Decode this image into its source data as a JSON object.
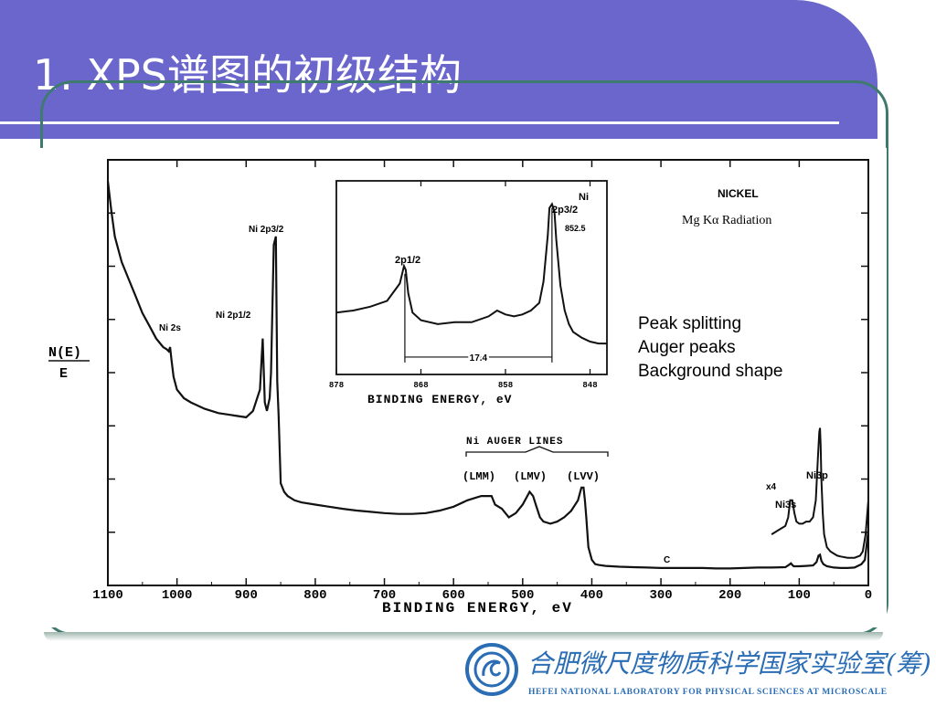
{
  "slide": {
    "title": "1. XPS谱图的初级结构",
    "logo_cn": "合肥微尺度物质科学国家实验室(筹)",
    "logo_en": "HEFEI NATIONAL LABORATORY FOR PHYSICAL SCIENCES AT MICROSCALE",
    "colors": {
      "title_bg": "#6a66cc",
      "frame": "#3f7a6f",
      "logo_blue": "#2a6db5"
    }
  },
  "chart_data": [
    {
      "type": "line",
      "title": "",
      "xlabel": "BINDING ENERGY, eV",
      "ylabel": "N(E) / E",
      "xlim": [
        1100,
        0
      ],
      "x_ticks": [
        "1100",
        "1000",
        "900",
        "800",
        "700",
        "600",
        "500",
        "400",
        "300",
        "200",
        "100",
        "0"
      ],
      "annotations": {
        "sample": "NICKEL",
        "radiation": "Mg Kα Radiation",
        "ni2s": "Ni 2s",
        "ni2p12": "Ni 2p1/2",
        "ni2p32": "Ni 2p3/2",
        "auger_group": "Ni AUGER LINES",
        "lmm": "(LMM)",
        "lmv": "(LMV)",
        "lvv": "(LVV)",
        "x4": "x4",
        "ni3s": "Ni3s",
        "ni3p": "Ni3p",
        "c": "C"
      },
      "notes": [
        "Peak splitting",
        "Auger peaks",
        "Background shape"
      ],
      "x": [
        1100,
        1095,
        1090,
        1080,
        1070,
        1060,
        1050,
        1040,
        1030,
        1020,
        1015,
        1012,
        1010,
        1008,
        1005,
        1000,
        990,
        980,
        960,
        940,
        920,
        900,
        890,
        880,
        876,
        873,
        870,
        866,
        864,
        860,
        857,
        855,
        853,
        850,
        845,
        840,
        830,
        820,
        800,
        780,
        760,
        740,
        720,
        700,
        680,
        660,
        640,
        620,
        600,
        580,
        560,
        550,
        545,
        540,
        530,
        520,
        510,
        500,
        490,
        485,
        480,
        475,
        470,
        460,
        450,
        440,
        430,
        420,
        415,
        412,
        410,
        408,
        405,
        400,
        395,
        390,
        380,
        360,
        340,
        320,
        300,
        280,
        260,
        240,
        220,
        200,
        180,
        160,
        140,
        120,
        115,
        112,
        110,
        108,
        100,
        90,
        80,
        75,
        72,
        70,
        68,
        65,
        60,
        50,
        40,
        30,
        20,
        10,
        5,
        0
      ],
      "y": [
        0.95,
        0.88,
        0.82,
        0.76,
        0.72,
        0.68,
        0.64,
        0.61,
        0.58,
        0.56,
        0.555,
        0.55,
        0.56,
        0.53,
        0.49,
        0.46,
        0.44,
        0.43,
        0.415,
        0.405,
        0.4,
        0.395,
        0.41,
        0.46,
        0.58,
        0.43,
        0.41,
        0.44,
        0.5,
        0.8,
        0.82,
        0.48,
        0.4,
        0.24,
        0.22,
        0.21,
        0.2,
        0.195,
        0.19,
        0.185,
        0.18,
        0.176,
        0.173,
        0.17,
        0.168,
        0.168,
        0.17,
        0.176,
        0.185,
        0.2,
        0.21,
        0.21,
        0.21,
        0.19,
        0.18,
        0.16,
        0.17,
        0.19,
        0.22,
        0.21,
        0.185,
        0.16,
        0.15,
        0.145,
        0.15,
        0.16,
        0.175,
        0.2,
        0.23,
        0.23,
        0.2,
        0.16,
        0.09,
        0.06,
        0.05,
        0.048,
        0.046,
        0.044,
        0.043,
        0.042,
        0.041,
        0.041,
        0.041,
        0.041,
        0.04,
        0.04,
        0.041,
        0.042,
        0.042,
        0.043,
        0.048,
        0.052,
        0.048,
        0.045,
        0.045,
        0.046,
        0.047,
        0.055,
        0.07,
        0.072,
        0.058,
        0.05,
        0.045,
        0.042,
        0.041,
        0.041,
        0.042,
        0.05,
        0.06,
        0.13
      ],
      "x4_trace": {
        "x": [
          140,
          130,
          120,
          116,
          113,
          110,
          107,
          104,
          100,
          95,
          90,
          85,
          80,
          76,
          73,
          71,
          70,
          69,
          68,
          66,
          64,
          60,
          55,
          50,
          45,
          40,
          30,
          20,
          12,
          8,
          4,
          0
        ],
        "y": [
          0.12,
          0.13,
          0.14,
          0.16,
          0.2,
          0.2,
          0.17,
          0.15,
          0.145,
          0.145,
          0.15,
          0.15,
          0.16,
          0.2,
          0.3,
          0.36,
          0.37,
          0.33,
          0.25,
          0.17,
          0.12,
          0.09,
          0.08,
          0.075,
          0.07,
          0.068,
          0.065,
          0.065,
          0.07,
          0.08,
          0.12,
          0.2
        ]
      }
    },
    {
      "type": "line",
      "title": "",
      "xlabel": "BINDING ENERGY, eV",
      "xlim": [
        878,
        846
      ],
      "x_ticks": [
        "878",
        "868",
        "858",
        "848"
      ],
      "annotations": {
        "ni": "Ni",
        "p32": "2p3/2",
        "p32_value": "852.5",
        "p12": "2p1/2",
        "splitting": "17.4"
      },
      "x": [
        878,
        876,
        874,
        872,
        870.5,
        870,
        869.8,
        869.5,
        869,
        868,
        866,
        864,
        862,
        860,
        859,
        858,
        857,
        856,
        855,
        854,
        853.5,
        853,
        852.8,
        852.5,
        852.2,
        852,
        851.5,
        851,
        850.5,
        850,
        849,
        848,
        847,
        846
      ],
      "y": [
        0.32,
        0.33,
        0.35,
        0.38,
        0.47,
        0.56,
        0.54,
        0.42,
        0.32,
        0.28,
        0.26,
        0.27,
        0.27,
        0.3,
        0.33,
        0.31,
        0.3,
        0.31,
        0.33,
        0.37,
        0.48,
        0.72,
        0.86,
        0.88,
        0.84,
        0.7,
        0.46,
        0.33,
        0.26,
        0.22,
        0.19,
        0.17,
        0.16,
        0.16
      ]
    }
  ]
}
